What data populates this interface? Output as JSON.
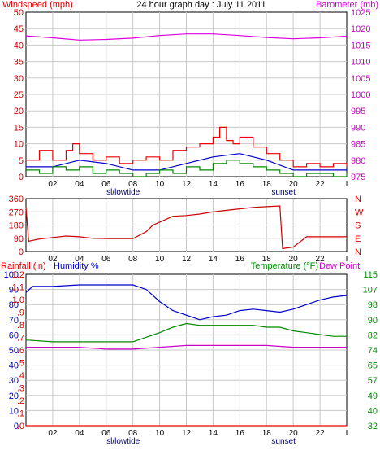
{
  "chart_data": [
    {
      "type": "line",
      "title": "24 hour graph day : July 11 2011",
      "left_axis_label": "Windspeed (mph)",
      "right_axis_label": "Barometer (mb)",
      "left_ylim": [
        0,
        50
      ],
      "left_ticks": [
        "0",
        "5",
        "10",
        "15",
        "20",
        "25",
        "30",
        "35",
        "40",
        "45",
        "50"
      ],
      "right_ylim": [
        975,
        1025
      ],
      "right_ticks": [
        "975",
        "980",
        "985",
        "990",
        "995",
        "1000",
        "1005",
        "1010",
        "1015",
        "1020",
        "1025"
      ],
      "x_ticks": [
        "02",
        "04",
        "06",
        "08",
        "10",
        "12",
        "14",
        "16",
        "18",
        "20",
        "22",
        "I"
      ],
      "x_annotations": [
        "sl/lowtide",
        "sunset"
      ],
      "grid": true,
      "series": [
        {
          "key": "barometer",
          "axis": "right",
          "color": "#dd00dd",
          "x": [
            0,
            2,
            4,
            6,
            8,
            10,
            12,
            14,
            16,
            18,
            20,
            22,
            24
          ],
          "values": [
            1017.8,
            1017.2,
            1016.5,
            1016.7,
            1017.1,
            1017.9,
            1018.4,
            1018.4,
            1017.9,
            1017.3,
            1016.9,
            1017.2,
            1017.7
          ]
        },
        {
          "key": "gust",
          "axis": "left",
          "color": "#ee0000",
          "style": "step",
          "x": [
            0,
            1,
            2,
            3,
            3.5,
            4,
            5,
            6,
            7,
            8,
            9,
            10,
            11,
            12,
            13,
            14,
            14.5,
            15,
            15.5,
            16,
            17,
            18,
            19,
            20,
            21,
            22,
            23,
            24
          ],
          "values": [
            5,
            8,
            5,
            8,
            10,
            7,
            5,
            6,
            4,
            5,
            6,
            5,
            8,
            9,
            10,
            12,
            15,
            11,
            10,
            12,
            9,
            7,
            5,
            3,
            4,
            3,
            4,
            3
          ]
        },
        {
          "key": "average",
          "axis": "left",
          "color": "#0000cc",
          "x": [
            0,
            2,
            4,
            6,
            8,
            10,
            12,
            14,
            16,
            18,
            20,
            22,
            24
          ],
          "values": [
            3,
            3,
            5,
            4,
            2,
            2,
            4,
            6,
            7,
            5,
            2,
            2,
            2
          ]
        },
        {
          "key": "wind",
          "axis": "left",
          "color": "#008800",
          "style": "step",
          "x": [
            0,
            1,
            2,
            3,
            4,
            5,
            6,
            7,
            8,
            9,
            10,
            11,
            12,
            13,
            14,
            15,
            16,
            17,
            18,
            19,
            20,
            21,
            22,
            23,
            24
          ],
          "values": [
            2,
            1,
            3,
            2,
            3,
            1,
            2,
            1,
            0,
            1,
            2,
            1,
            3,
            2,
            4,
            5,
            4,
            3,
            2,
            1,
            0,
            1,
            1,
            0,
            1
          ]
        }
      ]
    },
    {
      "type": "scatter",
      "left_ylim": [
        0,
        360
      ],
      "left_ticks": [
        "0",
        "90",
        "180",
        "270",
        "360"
      ],
      "right_ticks": [
        "N",
        "E",
        "S",
        "W",
        "N"
      ],
      "x_ticks": [
        "02",
        "04",
        "06",
        "08",
        "10",
        "12",
        "14",
        "16",
        "18",
        "20",
        "22",
        "I"
      ],
      "grid": true,
      "series": [
        {
          "key": "direction",
          "color": "#cc0000",
          "x": [
            0,
            0.2,
            1,
            2,
            3,
            4,
            5,
            6,
            8,
            9,
            9.5,
            10,
            11,
            12,
            13,
            14,
            15,
            16,
            17,
            18,
            19,
            19.2,
            20,
            21,
            22,
            24
          ],
          "values": [
            300,
            70,
            85,
            95,
            105,
            100,
            90,
            88,
            88,
            135,
            180,
            200,
            240,
            245,
            255,
            270,
            280,
            290,
            300,
            305,
            310,
            20,
            30,
            100,
            100,
            100
          ]
        }
      ]
    },
    {
      "type": "line",
      "rain_axis_label": "Rainfall (in)",
      "humidity_axis_label": "Humidity %",
      "temp_axis_label": "Temperature (°F)",
      "dew_axis_label": "Dew Point",
      "humidity_ylim": [
        0,
        100
      ],
      "humidity_ticks": [
        "0",
        "10",
        "20",
        "30",
        "40",
        "50",
        "60",
        "70",
        "80",
        "90",
        "100"
      ],
      "rain_ylim": [
        0,
        1.2
      ],
      "rain_ticks": [
        ".0",
        ".1",
        ".2",
        ".3",
        ".4",
        ".5",
        ".6",
        ".7",
        ".8",
        ".9",
        "1.0",
        "1.1",
        "1.2"
      ],
      "temp_ylim": [
        32,
        115
      ],
      "temp_ticks": [
        "32",
        "40",
        "49",
        "57",
        "65",
        "74",
        "82",
        "90",
        "98",
        "107",
        "115"
      ],
      "x_ticks": [
        "02",
        "04",
        "06",
        "08",
        "10",
        "12",
        "14",
        "16",
        "18",
        "20",
        "22",
        "I"
      ],
      "x_annotations": [
        "sl/lowtide",
        "sunset"
      ],
      "grid": true,
      "series": [
        {
          "key": "humidity",
          "axis": "humidity",
          "color": "#0000cc",
          "x": [
            0,
            0.5,
            2,
            4,
            6,
            8,
            9,
            10,
            11,
            12,
            13,
            14,
            15,
            16,
            17,
            18,
            19,
            20,
            21,
            22,
            23,
            24
          ],
          "values": [
            88,
            92,
            92,
            93,
            93,
            93,
            90,
            82,
            76,
            73,
            70,
            72,
            73,
            76,
            77,
            76,
            75,
            77,
            80,
            83,
            85,
            86
          ]
        },
        {
          "key": "temperature",
          "axis": "temp",
          "color": "#008800",
          "x": [
            0,
            2,
            4,
            6,
            8,
            10,
            11,
            12,
            13,
            14,
            15,
            16,
            17,
            18,
            19,
            20,
            21,
            22,
            23,
            24
          ],
          "values": [
            79,
            78,
            78,
            78,
            78,
            83,
            86,
            88,
            87,
            87,
            87,
            87,
            87,
            86,
            86,
            84,
            83,
            82,
            81,
            81
          ]
        },
        {
          "key": "dewpoint",
          "axis": "temp",
          "color": "#cc00cc",
          "x": [
            0,
            2,
            4,
            6,
            8,
            10,
            12,
            14,
            16,
            18,
            20,
            22,
            24
          ],
          "values": [
            75,
            75,
            75,
            74,
            74,
            75,
            76,
            76,
            76,
            76,
            75,
            75,
            75
          ]
        },
        {
          "key": "rainfall",
          "axis": "rain",
          "color": "#ee0000",
          "x": [
            0,
            24
          ],
          "values": [
            0,
            0
          ]
        }
      ]
    }
  ]
}
